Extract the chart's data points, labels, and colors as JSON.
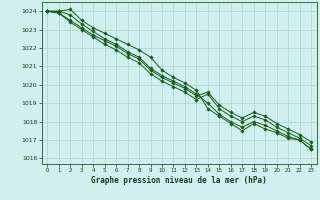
{
  "title": "Graphe pression niveau de la mer (hPa)",
  "bg_color": "#cff0ee",
  "grid_color": "#aad4ce",
  "line_color": "#1a5c1a",
  "marker_color": "#1a5c1a",
  "xlim": [
    -0.5,
    23.5
  ],
  "ylim": [
    1015.7,
    1024.5
  ],
  "yticks": [
    1016,
    1017,
    1018,
    1019,
    1020,
    1021,
    1022,
    1023,
    1024
  ],
  "xticks": [
    0,
    1,
    2,
    3,
    4,
    5,
    6,
    7,
    8,
    9,
    10,
    11,
    12,
    13,
    14,
    15,
    16,
    17,
    18,
    19,
    20,
    21,
    22,
    23
  ],
  "series": [
    [
      1024.0,
      1024.0,
      1024.1,
      1023.5,
      1023.1,
      1022.8,
      1022.5,
      1022.2,
      1021.9,
      1021.5,
      1020.8,
      1020.4,
      1020.1,
      1019.7,
      1018.7,
      1018.3,
      1017.9,
      1017.5,
      1017.9,
      1017.6,
      1017.4,
      1017.1,
      1017.0,
      1016.5
    ],
    [
      1024.0,
      1024.0,
      1023.8,
      1023.3,
      1022.9,
      1022.5,
      1022.2,
      1021.8,
      1021.5,
      1020.9,
      1020.5,
      1020.2,
      1019.9,
      1019.5,
      1019.0,
      1018.4,
      1018.0,
      1017.7,
      1018.0,
      1017.8,
      1017.5,
      1017.2,
      1017.0,
      1016.5
    ],
    [
      1024.0,
      1023.9,
      1023.4,
      1023.0,
      1022.6,
      1022.2,
      1021.9,
      1021.5,
      1021.2,
      1020.6,
      1020.2,
      1019.9,
      1019.6,
      1019.2,
      1019.5,
      1018.7,
      1018.3,
      1018.0,
      1018.3,
      1018.1,
      1017.7,
      1017.4,
      1017.1,
      1016.7
    ],
    [
      1024.0,
      1023.9,
      1023.5,
      1023.1,
      1022.7,
      1022.4,
      1022.1,
      1021.7,
      1021.4,
      1020.8,
      1020.4,
      1020.1,
      1019.8,
      1019.4,
      1019.6,
      1018.9,
      1018.5,
      1018.2,
      1018.5,
      1018.3,
      1017.9,
      1017.6,
      1017.3,
      1016.9
    ]
  ]
}
